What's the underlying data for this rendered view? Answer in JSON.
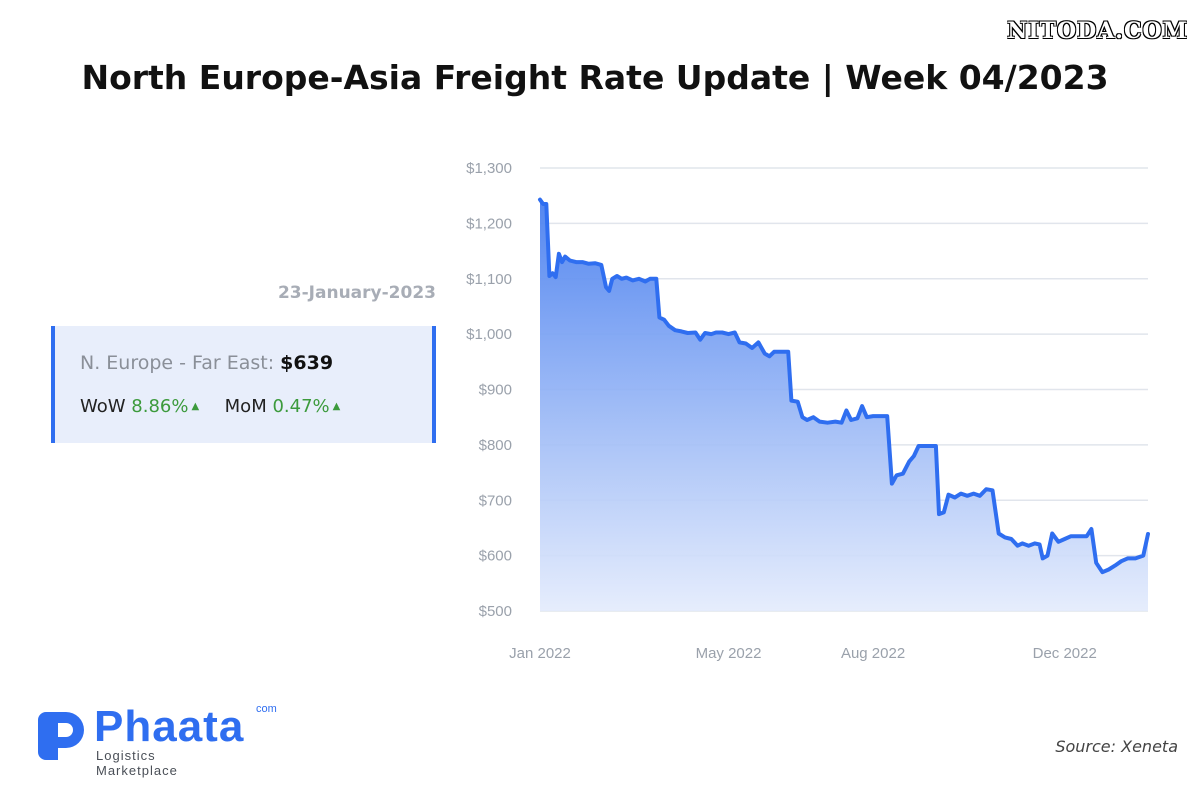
{
  "watermark": "NITODA.COM",
  "title": "North Europe-Asia Freight Rate Update | Week 04/2023",
  "date": "23-January-2023",
  "card": {
    "route_label": "N. Europe - Far East:",
    "route_value": "$639",
    "wow_label": "WoW",
    "wow_value": "8.86%",
    "mom_label": "MoM",
    "mom_value": "0.47%"
  },
  "logo": {
    "name": "Phaata",
    "suffix": "com",
    "tagline": "Logistics Marketplace"
  },
  "source": "Source: Xeneta",
  "colors": {
    "accent": "#2f6ef0",
    "positive": "#3c9a3c",
    "card_bg": "#e8eefb"
  },
  "chart_data": {
    "type": "area",
    "ylim": [
      500,
      1300
    ],
    "yticks": [
      {
        "value": 1300,
        "label": "$1,300"
      },
      {
        "value": 1200,
        "label": "$1,200"
      },
      {
        "value": 1100,
        "label": "$1,100"
      },
      {
        "value": 1000,
        "label": "$1,000"
      },
      {
        "value": 900,
        "label": "$900"
      },
      {
        "value": 800,
        "label": "$800"
      },
      {
        "value": 700,
        "label": "$700"
      },
      {
        "value": 600,
        "label": "$600"
      },
      {
        "value": 500,
        "label": "$500"
      }
    ],
    "xlim": [
      "2022-01-01",
      "2023-01-23"
    ],
    "xticks": [
      {
        "date": "2022-01-01",
        "label": "Jan 2022"
      },
      {
        "date": "2022-05-01",
        "label": "May 2022"
      },
      {
        "date": "2022-08-01",
        "label": "Aug 2022"
      },
      {
        "date": "2022-12-01",
        "label": "Dec 2022"
      }
    ],
    "grid": true,
    "series": [
      {
        "points": [
          [
            "2022-01-01",
            1243
          ],
          [
            "2022-01-03",
            1235
          ],
          [
            "2022-01-05",
            1235
          ],
          [
            "2022-01-07",
            1105
          ],
          [
            "2022-01-09",
            1110
          ],
          [
            "2022-01-11",
            1103
          ],
          [
            "2022-01-13",
            1145
          ],
          [
            "2022-01-15",
            1130
          ],
          [
            "2022-01-17",
            1140
          ],
          [
            "2022-01-20",
            1133
          ],
          [
            "2022-01-24",
            1130
          ],
          [
            "2022-01-28",
            1130
          ],
          [
            "2022-02-01",
            1127
          ],
          [
            "2022-02-05",
            1128
          ],
          [
            "2022-02-09",
            1125
          ],
          [
            "2022-02-12",
            1085
          ],
          [
            "2022-02-14",
            1078
          ],
          [
            "2022-02-16",
            1100
          ],
          [
            "2022-02-19",
            1105
          ],
          [
            "2022-02-22",
            1100
          ],
          [
            "2022-02-25",
            1102
          ],
          [
            "2022-03-01",
            1097
          ],
          [
            "2022-03-05",
            1100
          ],
          [
            "2022-03-09",
            1095
          ],
          [
            "2022-03-12",
            1100
          ],
          [
            "2022-03-16",
            1100
          ],
          [
            "2022-03-18",
            1030
          ],
          [
            "2022-03-21",
            1026
          ],
          [
            "2022-03-24",
            1015
          ],
          [
            "2022-03-28",
            1007
          ],
          [
            "2022-04-01",
            1005
          ],
          [
            "2022-04-05",
            1002
          ],
          [
            "2022-04-10",
            1003
          ],
          [
            "2022-04-13",
            990
          ],
          [
            "2022-04-16",
            1002
          ],
          [
            "2022-04-20",
            1000
          ],
          [
            "2022-04-23",
            1003
          ],
          [
            "2022-04-27",
            1003
          ],
          [
            "2022-05-01",
            1000
          ],
          [
            "2022-05-05",
            1003
          ],
          [
            "2022-05-08",
            985
          ],
          [
            "2022-05-12",
            983
          ],
          [
            "2022-05-16",
            975
          ],
          [
            "2022-05-20",
            985
          ],
          [
            "2022-05-24",
            965
          ],
          [
            "2022-05-27",
            960
          ],
          [
            "2022-05-30",
            968
          ],
          [
            "2022-06-04",
            968
          ],
          [
            "2022-06-08",
            968
          ],
          [
            "2022-06-10",
            880
          ],
          [
            "2022-06-14",
            878
          ],
          [
            "2022-06-17",
            850
          ],
          [
            "2022-06-20",
            845
          ],
          [
            "2022-06-24",
            850
          ],
          [
            "2022-06-28",
            842
          ],
          [
            "2022-07-03",
            840
          ],
          [
            "2022-07-08",
            842
          ],
          [
            "2022-07-12",
            840
          ],
          [
            "2022-07-15",
            862
          ],
          [
            "2022-07-18",
            845
          ],
          [
            "2022-07-22",
            848
          ],
          [
            "2022-07-25",
            870
          ],
          [
            "2022-07-28",
            850
          ],
          [
            "2022-08-01",
            852
          ],
          [
            "2022-08-07",
            852
          ],
          [
            "2022-08-10",
            852
          ],
          [
            "2022-08-13",
            730
          ],
          [
            "2022-08-16",
            745
          ],
          [
            "2022-08-20",
            748
          ],
          [
            "2022-08-24",
            770
          ],
          [
            "2022-08-27",
            780
          ],
          [
            "2022-08-30",
            798
          ],
          [
            "2022-09-05",
            798
          ],
          [
            "2022-09-10",
            798
          ],
          [
            "2022-09-12",
            675
          ],
          [
            "2022-09-15",
            678
          ],
          [
            "2022-09-18",
            710
          ],
          [
            "2022-09-22",
            705
          ],
          [
            "2022-09-26",
            712
          ],
          [
            "2022-09-30",
            708
          ],
          [
            "2022-10-04",
            712
          ],
          [
            "2022-10-08",
            708
          ],
          [
            "2022-10-12",
            720
          ],
          [
            "2022-10-16",
            718
          ],
          [
            "2022-10-20",
            640
          ],
          [
            "2022-10-24",
            633
          ],
          [
            "2022-10-28",
            630
          ],
          [
            "2022-11-01",
            618
          ],
          [
            "2022-11-04",
            622
          ],
          [
            "2022-11-08",
            618
          ],
          [
            "2022-11-12",
            622
          ],
          [
            "2022-11-15",
            620
          ],
          [
            "2022-11-17",
            595
          ],
          [
            "2022-11-20",
            600
          ],
          [
            "2022-11-23",
            640
          ],
          [
            "2022-11-27",
            625
          ],
          [
            "2022-12-01",
            630
          ],
          [
            "2022-12-05",
            635
          ],
          [
            "2022-12-10",
            635
          ],
          [
            "2022-12-15",
            635
          ],
          [
            "2022-12-18",
            648
          ],
          [
            "2022-12-21",
            587
          ],
          [
            "2022-12-25",
            570
          ],
          [
            "2022-12-29",
            575
          ],
          [
            "2023-01-02",
            582
          ],
          [
            "2023-01-06",
            590
          ],
          [
            "2023-01-10",
            595
          ],
          [
            "2023-01-15",
            595
          ],
          [
            "2023-01-20",
            600
          ],
          [
            "2023-01-23",
            639
          ]
        ]
      }
    ]
  }
}
